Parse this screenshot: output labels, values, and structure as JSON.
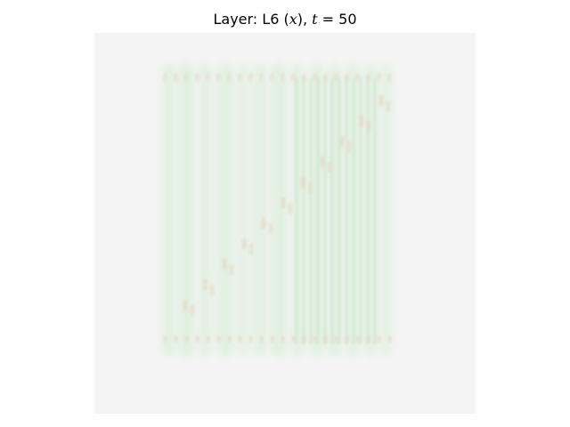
{
  "figure": {
    "title_prefix": "Layer: L6 (",
    "title_var": "x",
    "title_mid": "), ",
    "title_t": "t",
    "title_suffix": " = 50"
  },
  "colors": {
    "background": "#f4f4f4",
    "bar_green": "#dcefdc",
    "bar_green_strong": "#cfe8cf",
    "line_green": "#b9deb9",
    "accent_tan": "#e6d6c0"
  }
}
